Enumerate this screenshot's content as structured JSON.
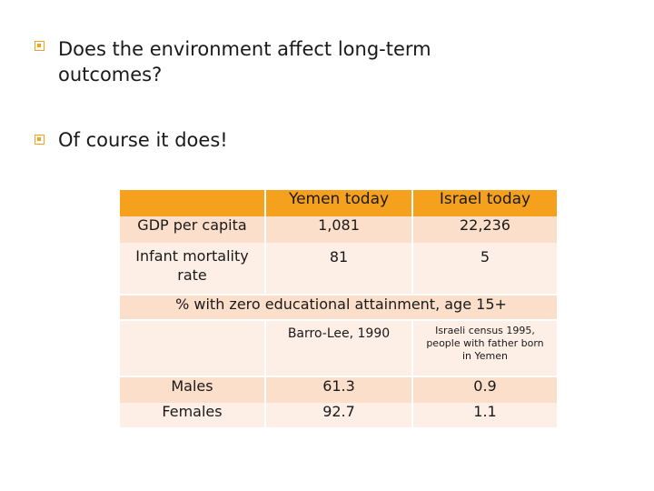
{
  "bullets": [
    {
      "text_line1": "Does the environment affect long-term",
      "text_line2": "outcomes?"
    },
    {
      "text": "Of course it does!"
    }
  ],
  "table": {
    "headers": [
      "",
      "Yemen today",
      "Israel today"
    ],
    "rows": [
      {
        "label": "GDP per capita",
        "yemen": "1,081",
        "israel": "22,236"
      },
      {
        "label_line1": "Infant mortality",
        "label_line2": "rate",
        "yemen": "81",
        "israel": "5"
      }
    ],
    "section_title": "% with zero educational attainment, age 15+",
    "sources": {
      "yemen": "Barro-Lee, 1990",
      "israel_line1": "Israeli census 1995,",
      "israel_line2": "people with father born",
      "israel_line3": "in Yemen"
    },
    "edu_rows": [
      {
        "label": "Males",
        "yemen": "61.3",
        "israel": "0.9"
      },
      {
        "label": "Females",
        "yemen": "92.7",
        "israel": "1.1"
      }
    ]
  },
  "colors": {
    "header": "#f6a11d",
    "band_dark": "#fbdfcb",
    "band_light": "#fdefe6",
    "bullet": "#f4a21b"
  }
}
